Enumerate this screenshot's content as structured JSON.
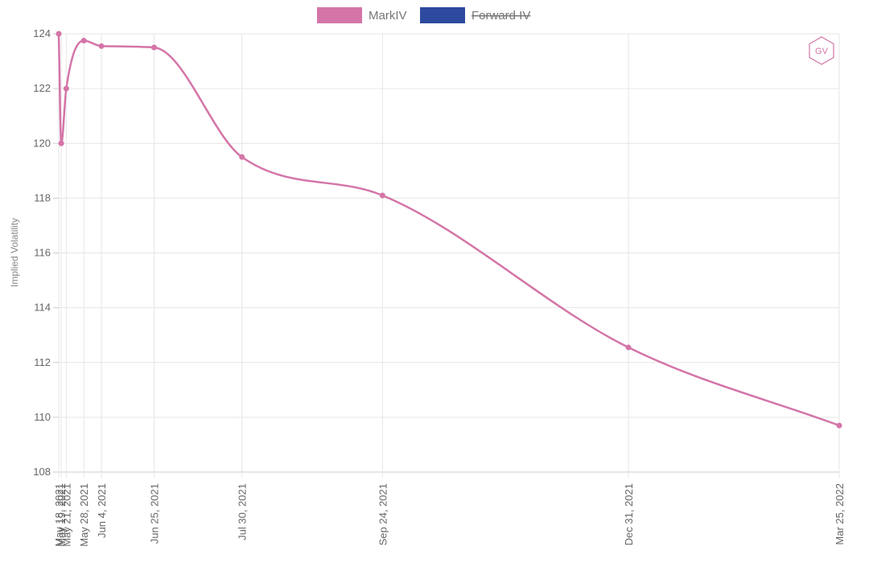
{
  "chart_data": {
    "type": "line",
    "legend": [
      {
        "name": "MarkIV",
        "color": "#d475a8",
        "hidden": false
      },
      {
        "name": "Forward IV",
        "color": "#2e4a9e",
        "hidden": true
      }
    ],
    "legend_position": "top-center",
    "ylabel": "Implied Volatility",
    "ylim": [
      108,
      124
    ],
    "yticks": [
      108,
      110,
      112,
      114,
      116,
      118,
      120,
      122,
      124
    ],
    "grid": true,
    "x_axis_type": "date",
    "xlim": [
      "2021-05-18",
      "2022-03-25"
    ],
    "x_tick_labels": [
      "May 18, 2021",
      "May 19, 2021",
      "May 21, 2021",
      "May 28, 2021",
      "Jun 4, 2021",
      "Jun 25, 2021",
      "Jul 30, 2021",
      "Sep 24, 2021",
      "Dec 31, 2021",
      "Mar 25, 2022"
    ],
    "series": [
      {
        "name": "MarkIV",
        "color": "#d475a8",
        "points": [
          {
            "x": "2021-05-18",
            "y": 124.0
          },
          {
            "x": "2021-05-19",
            "y": 120.0
          },
          {
            "x": "2021-05-21",
            "y": 122.0
          },
          {
            "x": "2021-05-28",
            "y": 123.75
          },
          {
            "x": "2021-06-04",
            "y": 123.55
          },
          {
            "x": "2021-06-25",
            "y": 123.5
          },
          {
            "x": "2021-07-30",
            "y": 119.5
          },
          {
            "x": "2021-09-24",
            "y": 118.1
          },
          {
            "x": "2021-12-31",
            "y": 112.55
          },
          {
            "x": "2022-03-25",
            "y": 109.7
          }
        ]
      }
    ],
    "badge": "GV"
  }
}
